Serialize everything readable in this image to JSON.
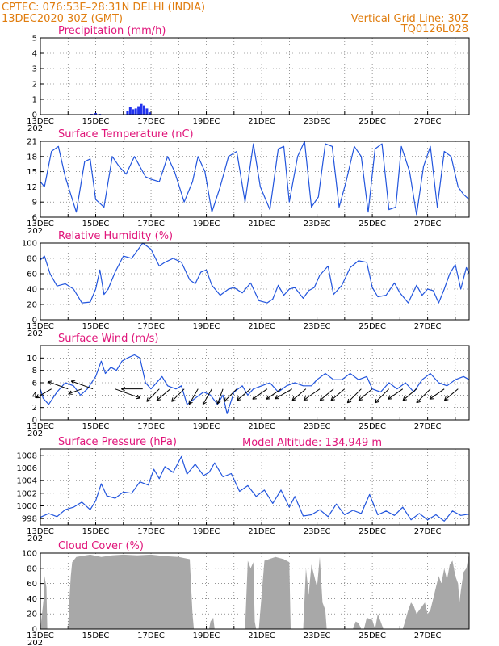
{
  "header": {
    "line1": "CPTEC:   076:53E–28:31N   DELHI (INDIA)",
    "line2": "13DEC2020 30Z (GMT)",
    "grid_note": "Vertical Grid Line: 30Z",
    "code": "TQ0126L028"
  },
  "model_altitude": "Model Altitude: 134.949  m",
  "x_tick_labels": [
    "13DEC",
    "15DEC",
    "17DEC",
    "19DEC",
    "21DEC",
    "23DEC",
    "25DEC",
    "27DEC"
  ],
  "year_fragment": "202",
  "colors": {
    "line": "#2255dd",
    "bar": "#2233ee",
    "cloud": "#a8a8a8",
    "header": "#e07d0f",
    "title": "#e0157a"
  },
  "chart_data": [
    {
      "type": "bar",
      "title": "Precipitation (mm/h)",
      "ylim": [
        0,
        5
      ],
      "yticks": [
        "0",
        "1",
        "2",
        "3",
        "4",
        "5"
      ],
      "x_range_days": [
        13,
        28.5
      ],
      "x": [
        14.85,
        15.0,
        15.15,
        16.15,
        16.25,
        16.35,
        16.45,
        16.55,
        16.65,
        16.75,
        16.85,
        16.95
      ],
      "values": [
        0.05,
        0.1,
        0.05,
        0.25,
        0.5,
        0.35,
        0.4,
        0.55,
        0.7,
        0.6,
        0.4,
        0.15
      ]
    },
    {
      "type": "line",
      "title": "Surface Temperature (nC)",
      "ylim": [
        6,
        21
      ],
      "yticks": [
        "6",
        "9",
        "12",
        "15",
        "18",
        "21"
      ],
      "x_range_days": [
        13,
        28.5
      ],
      "x": [
        13,
        13.15,
        13.4,
        13.65,
        13.9,
        14.3,
        14.6,
        14.8,
        15.0,
        15.3,
        15.6,
        15.85,
        16.1,
        16.4,
        16.8,
        17.0,
        17.3,
        17.6,
        17.85,
        18.2,
        18.5,
        18.7,
        18.95,
        19.2,
        19.5,
        19.8,
        20.1,
        20.4,
        20.7,
        20.95,
        21.3,
        21.6,
        21.8,
        22.0,
        22.3,
        22.55,
        22.8,
        23.05,
        23.3,
        23.55,
        23.8,
        24.05,
        24.35,
        24.6,
        24.85,
        25.1,
        25.35,
        25.6,
        25.85,
        26.05,
        26.35,
        26.6,
        26.85,
        27.1,
        27.35,
        27.6,
        27.85,
        28.1,
        28.3,
        28.5
      ],
      "values": [
        13,
        12,
        19,
        20,
        14,
        7,
        17,
        17.5,
        9.5,
        8,
        18,
        16,
        14.5,
        18,
        14,
        13.5,
        13,
        18,
        15,
        9,
        13,
        18,
        15,
        7,
        12,
        18,
        19,
        9,
        20.5,
        12,
        7.5,
        19.5,
        20,
        9,
        18,
        21,
        8,
        10,
        20.5,
        20,
        8,
        13,
        20,
        18,
        7,
        19.5,
        20.5,
        7.5,
        8,
        20,
        15,
        6.5,
        16,
        20,
        8,
        19,
        18,
        12,
        10.5,
        9.5
      ]
    },
    {
      "type": "line",
      "title": "Relative Humidity (%)",
      "ylim": [
        0,
        100
      ],
      "yticks": [
        "0",
        "20",
        "40",
        "60",
        "80",
        "100"
      ],
      "x_range_days": [
        13,
        28.5
      ],
      "x": [
        13,
        13.15,
        13.35,
        13.6,
        13.9,
        14.2,
        14.5,
        14.8,
        15.0,
        15.15,
        15.3,
        15.45,
        15.7,
        16.0,
        16.3,
        16.7,
        17.0,
        17.3,
        17.5,
        17.8,
        18.1,
        18.4,
        18.6,
        18.8,
        19.0,
        19.2,
        19.5,
        19.8,
        20.0,
        20.3,
        20.6,
        20.9,
        21.2,
        21.4,
        21.6,
        21.8,
        22.0,
        22.2,
        22.5,
        22.7,
        22.9,
        23.1,
        23.4,
        23.6,
        23.9,
        24.2,
        24.5,
        24.8,
        25.0,
        25.2,
        25.5,
        25.8,
        26.0,
        26.3,
        26.6,
        26.8,
        27.0,
        27.2,
        27.4,
        27.6,
        27.8,
        28.0,
        28.2,
        28.4,
        28.5
      ],
      "values": [
        78,
        83,
        60,
        44,
        47,
        40,
        22,
        23,
        40,
        65,
        33,
        40,
        62,
        83,
        80,
        100,
        92,
        70,
        75,
        80,
        75,
        52,
        47,
        62,
        65,
        45,
        32,
        40,
        42,
        35,
        48,
        25,
        22,
        27,
        45,
        32,
        40,
        42,
        28,
        38,
        42,
        58,
        70,
        33,
        45,
        68,
        77,
        75,
        42,
        30,
        32,
        48,
        35,
        22,
        45,
        32,
        40,
        38,
        22,
        40,
        60,
        72,
        40,
        68,
        60
      ]
    },
    {
      "type": "line",
      "title": "Surface Wind (m/s)",
      "ylim": [
        0,
        12
      ],
      "yticks": [
        "0",
        "2",
        "4",
        "6",
        "8",
        "10"
      ],
      "x_range_days": [
        13,
        28.5
      ],
      "x": [
        13,
        13.1,
        13.3,
        13.6,
        13.9,
        14.2,
        14.45,
        14.7,
        15.0,
        15.2,
        15.35,
        15.55,
        15.75,
        15.95,
        16.15,
        16.4,
        16.6,
        16.8,
        17.0,
        17.4,
        17.6,
        17.9,
        18.1,
        18.3,
        18.6,
        18.9,
        19.15,
        19.4,
        19.6,
        19.75,
        20.0,
        20.3,
        20.5,
        20.7,
        21.0,
        21.3,
        21.6,
        21.9,
        22.2,
        22.5,
        22.8,
        23.0,
        23.3,
        23.6,
        23.9,
        24.2,
        24.5,
        24.8,
        25.0,
        25.3,
        25.6,
        25.9,
        26.2,
        26.5,
        26.8,
        27.1,
        27.4,
        27.7,
        28.0,
        28.3,
        28.5
      ],
      "values": [
        5,
        3.5,
        2.5,
        4.5,
        6,
        5.5,
        4,
        5,
        7,
        9.5,
        7.5,
        8.5,
        8,
        9.5,
        10,
        10.5,
        10,
        6,
        5,
        7,
        5.5,
        5,
        5.5,
        2.5,
        3.5,
        4.5,
        4,
        2.5,
        4,
        1,
        4.5,
        5.5,
        4,
        5,
        5.5,
        6,
        4.5,
        5.5,
        6,
        5.5,
        5.5,
        6.5,
        7.5,
        6.5,
        6.5,
        7.5,
        6.5,
        7,
        5,
        4.5,
        6,
        5,
        6,
        4.5,
        6.5,
        7.5,
        6,
        5.5,
        6.5,
        7,
        6.5
      ]
    },
    {
      "type": "line",
      "title": "Surface Pressure (hPa)",
      "ylim": [
        997,
        1009
      ],
      "yticks": [
        "998",
        "1000",
        "1002",
        "1004",
        "1006",
        "1008"
      ],
      "x_range_days": [
        13,
        28.5
      ],
      "x": [
        13,
        13.3,
        13.6,
        13.9,
        14.2,
        14.5,
        14.8,
        15.0,
        15.2,
        15.4,
        15.7,
        16.0,
        16.3,
        16.6,
        16.9,
        17.1,
        17.3,
        17.5,
        17.8,
        18.1,
        18.3,
        18.6,
        18.9,
        19.1,
        19.3,
        19.6,
        19.9,
        20.2,
        20.5,
        20.8,
        21.1,
        21.4,
        21.7,
        22.0,
        22.2,
        22.5,
        22.8,
        23.1,
        23.4,
        23.7,
        24.0,
        24.3,
        24.6,
        24.9,
        25.2,
        25.5,
        25.8,
        26.1,
        26.4,
        26.7,
        27.0,
        27.3,
        27.6,
        27.9,
        28.2,
        28.5
      ],
      "values": [
        998.2,
        998.8,
        998.3,
        999.4,
        999.8,
        1000.6,
        999.4,
        1000.8,
        1003.5,
        1001.6,
        1001.2,
        1002.2,
        1002,
        1003.8,
        1003.3,
        1005.8,
        1004.3,
        1006.2,
        1005.3,
        1007.8,
        1005,
        1006.6,
        1004.8,
        1005.3,
        1006.8,
        1004.6,
        1005.1,
        1002.3,
        1003.2,
        1001.5,
        1002.5,
        1000.4,
        1002.5,
        999.8,
        1001.5,
        998.4,
        998.6,
        999.4,
        998.3,
        1000.3,
        998.6,
        999.3,
        998.8,
        1001.8,
        998.6,
        999.2,
        998.5,
        999.8,
        997.8,
        998.8,
        997.8,
        998.6,
        997.6,
        999.2,
        998.5,
        998.7
      ]
    },
    {
      "type": "area",
      "title": "Cloud Cover (%)",
      "ylim": [
        0,
        100
      ],
      "yticks": [
        "0",
        "20",
        "40",
        "60",
        "80",
        "100"
      ],
      "x_range_days": [
        13,
        28.5
      ],
      "x": [
        13.0,
        13.12,
        13.15,
        13.22,
        13.25,
        13.35,
        13.5,
        13.8,
        14.0,
        14.05,
        14.1,
        14.15,
        14.3,
        14.8,
        15.2,
        15.6,
        16.0,
        16.5,
        17.0,
        17.5,
        18.0,
        18.4,
        18.5,
        18.55,
        18.6,
        19.1,
        19.15,
        19.25,
        19.3,
        20.0,
        20.2,
        20.3,
        20.4,
        20.5,
        20.6,
        20.7,
        20.75,
        20.8,
        20.9,
        21.1,
        21.5,
        21.8,
        22.0,
        22.05,
        22.1,
        22.3,
        22.5,
        22.6,
        22.7,
        22.8,
        22.9,
        23.0,
        23.1,
        23.2,
        23.3,
        23.35,
        23.4,
        24.2,
        24.3,
        24.4,
        24.5,
        24.6,
        24.7,
        24.8,
        25.0,
        25.1,
        25.2,
        25.3,
        25.4,
        25.5,
        25.6,
        25.7,
        25.8,
        26.0,
        26.1,
        26.2,
        26.3,
        26.4,
        26.5,
        26.6,
        26.7,
        26.8,
        26.9,
        27.0,
        27.1,
        27.2,
        27.3,
        27.4,
        27.5,
        27.6,
        27.7,
        27.8,
        27.9,
        28.0,
        28.1,
        28.15,
        28.2,
        28.3,
        28.4,
        28.5
      ],
      "values": [
        0,
        40,
        70,
        55,
        0,
        0,
        0,
        0,
        0,
        40,
        70,
        88,
        95,
        98,
        95,
        97,
        98,
        97,
        98,
        96,
        95,
        92,
        20,
        0,
        0,
        0,
        10,
        15,
        0,
        0,
        0,
        0,
        0,
        90,
        80,
        88,
        10,
        0,
        0,
        90,
        95,
        92,
        88,
        0,
        0,
        0,
        0,
        80,
        45,
        85,
        70,
        55,
        95,
        35,
        25,
        0,
        0,
        0,
        0,
        10,
        8,
        0,
        0,
        15,
        12,
        0,
        20,
        10,
        0,
        0,
        0,
        0,
        0,
        0,
        0,
        12,
        25,
        35,
        30,
        20,
        25,
        30,
        35,
        20,
        25,
        40,
        55,
        70,
        60,
        80,
        65,
        85,
        90,
        70,
        60,
        35,
        50,
        75,
        80,
        100
      ]
    }
  ],
  "wind_vectors": {
    "note": "direction the arrow points (degrees clockwise from east, screen frame) and relative magnitude",
    "days": [
      13.4,
      14.0,
      14.5,
      14.9,
      15.7,
      16.7,
      17.3,
      17.7,
      18.2,
      18.7,
      19.2,
      19.6,
      20.1,
      20.6,
      21.2,
      21.7,
      22.1,
      22.6,
      23.1,
      23.6,
      24.0,
      24.6,
      25.0,
      25.6,
      26.1,
      26.6,
      27.1,
      27.6,
      28.1
    ],
    "angles": [
      150,
      200,
      160,
      200,
      20,
      180,
      135,
      140,
      135,
      120,
      120,
      110,
      135,
      140,
      145,
      145,
      150,
      140,
      145,
      140,
      140,
      135,
      140,
      135,
      145,
      140,
      135,
      145,
      140
    ],
    "lengths": [
      1,
      1.2,
      0.8,
      1.3,
      1.5,
      1.2,
      1,
      1,
      1,
      1,
      1,
      0.9,
      1,
      1,
      1,
      1,
      1.1,
      1,
      1.1,
      1,
      1,
      1.1,
      1,
      1.1,
      1,
      1,
      1.1,
      1,
      1
    ]
  }
}
